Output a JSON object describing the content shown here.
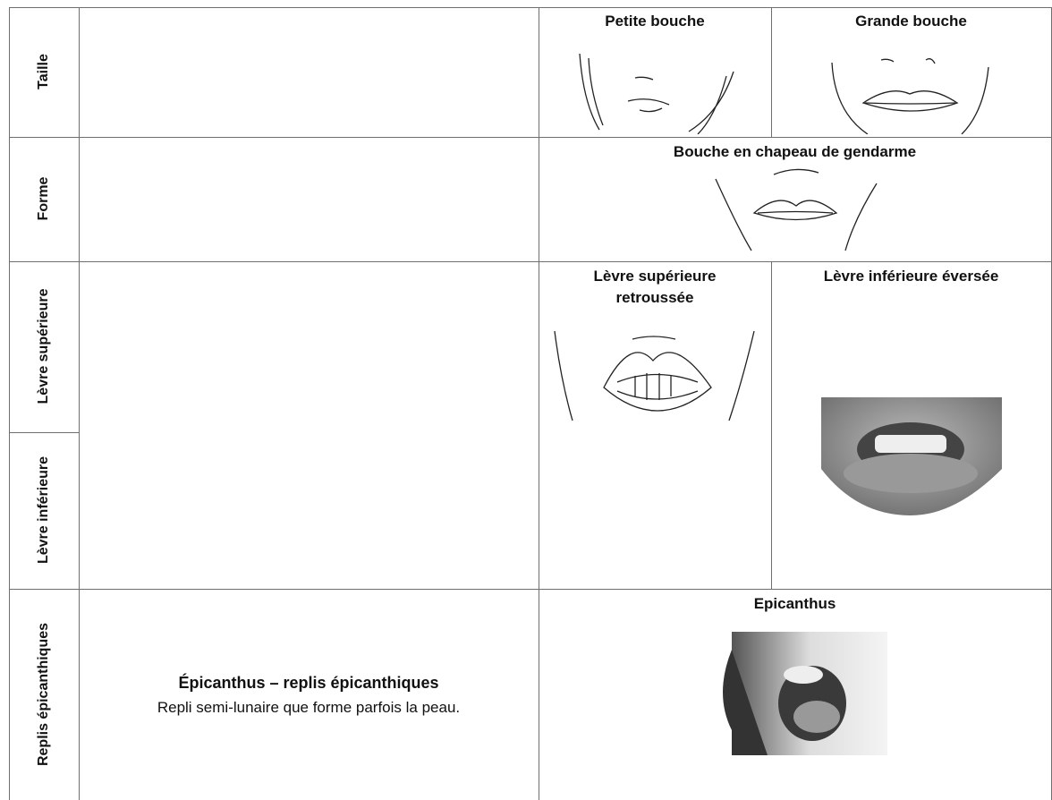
{
  "table": {
    "rows": [
      {
        "label": "Taille",
        "illustrations": [
          "Petite bouche",
          "Grande bouche"
        ]
      },
      {
        "label": "Forme",
        "illustrations": [
          "Bouche en chapeau de gendarme"
        ]
      },
      {
        "label": "Lèvre supérieure",
        "illustrations": [
          "Lèvre supérieure retroussée"
        ]
      },
      {
        "label": "Lèvre inférieure",
        "illustrations": [
          "Lèvre inférieure éversée"
        ]
      },
      {
        "label": "Replis épicanthiques",
        "description": {
          "title": "Épicanthus – replis épicanthiques",
          "text": "Repli semi-lunaire que forme parfois la peau."
        },
        "illustrations": [
          "Epicanthus"
        ]
      }
    ]
  }
}
